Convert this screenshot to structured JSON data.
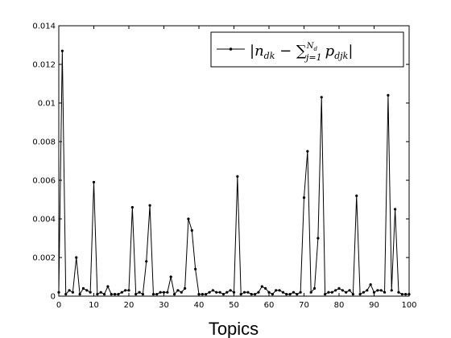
{
  "chart_data": {
    "type": "line",
    "xlabel": "Topics",
    "ylabel": "",
    "xlim": [
      0,
      100
    ],
    "ylim": [
      0,
      0.014
    ],
    "xticks": [
      "0",
      "10",
      "20",
      "30",
      "40",
      "50",
      "60",
      "70",
      "80",
      "90",
      "100"
    ],
    "yticks": [
      "0",
      "0.002",
      "0.004",
      "0.006",
      "0.008",
      "0.01",
      "0.012",
      "0.014"
    ],
    "grid": false,
    "legend_position": "top-right",
    "legend": {
      "abs_open": "|",
      "n": "n",
      "n_sub": "dk",
      "minus": " − ",
      "sum": "∑",
      "sum_sub": "j=1",
      "sum_sup": "N",
      "sum_sup_sub": "d",
      "p": "p",
      "p_sub": "djk",
      "abs_close": "|"
    },
    "series": [
      {
        "color": "#000000",
        "marker": "dot",
        "x": [
          0,
          1,
          2,
          3,
          4,
          5,
          6,
          7,
          8,
          9,
          10,
          11,
          12,
          13,
          14,
          15,
          16,
          17,
          18,
          19,
          20,
          21,
          22,
          23,
          24,
          25,
          26,
          27,
          28,
          29,
          30,
          31,
          32,
          33,
          34,
          35,
          36,
          37,
          38,
          39,
          40,
          41,
          42,
          43,
          44,
          45,
          46,
          47,
          48,
          49,
          50,
          51,
          52,
          53,
          54,
          55,
          56,
          57,
          58,
          59,
          60,
          61,
          62,
          63,
          64,
          65,
          66,
          67,
          68,
          69,
          70,
          71,
          72,
          73,
          74,
          75,
          76,
          77,
          78,
          79,
          80,
          81,
          82,
          83,
          84,
          85,
          86,
          87,
          88,
          89,
          90,
          91,
          92,
          93,
          94,
          95,
          96,
          97,
          98,
          99,
          100
        ],
        "y": [
          0.0002,
          0.0127,
          0.0001,
          0.0003,
          0.0002,
          0.002,
          0.0001,
          0.0004,
          0.0003,
          0.0002,
          0.0059,
          0.0001,
          0.0002,
          0.0001,
          0.0005,
          0.0001,
          0.0001,
          0.0001,
          0.0002,
          0.0003,
          0.0003,
          0.0046,
          0.0001,
          0.0002,
          0.0001,
          0.0018,
          0.0047,
          0.0001,
          0.0001,
          0.0002,
          0.0002,
          0.0002,
          0.001,
          0.0001,
          0.0003,
          0.0002,
          0.0004,
          0.004,
          0.0034,
          0.0014,
          0.0001,
          0.0001,
          0.0001,
          0.0002,
          0.0003,
          0.0002,
          0.0002,
          0.0001,
          0.0002,
          0.0003,
          0.0002,
          0.0062,
          0.0001,
          0.0002,
          0.0002,
          0.0001,
          0.0001,
          0.0002,
          0.0005,
          0.0004,
          0.0002,
          0.0001,
          0.0003,
          0.0003,
          0.0002,
          0.0001,
          0.0001,
          0.0002,
          0.0001,
          0.0002,
          0.0051,
          0.0075,
          0.0002,
          0.0004,
          0.003,
          0.0103,
          0.0001,
          0.0002,
          0.0002,
          0.0003,
          0.0004,
          0.0003,
          0.0002,
          0.0003,
          0.0001,
          0.0052,
          0.0001,
          0.0002,
          0.0003,
          0.0006,
          0.0002,
          0.0003,
          0.0003,
          0.0002,
          0.0104,
          0.0003,
          0.0045,
          0.0002,
          0.0001,
          0.0001,
          0.0001
        ]
      }
    ]
  }
}
